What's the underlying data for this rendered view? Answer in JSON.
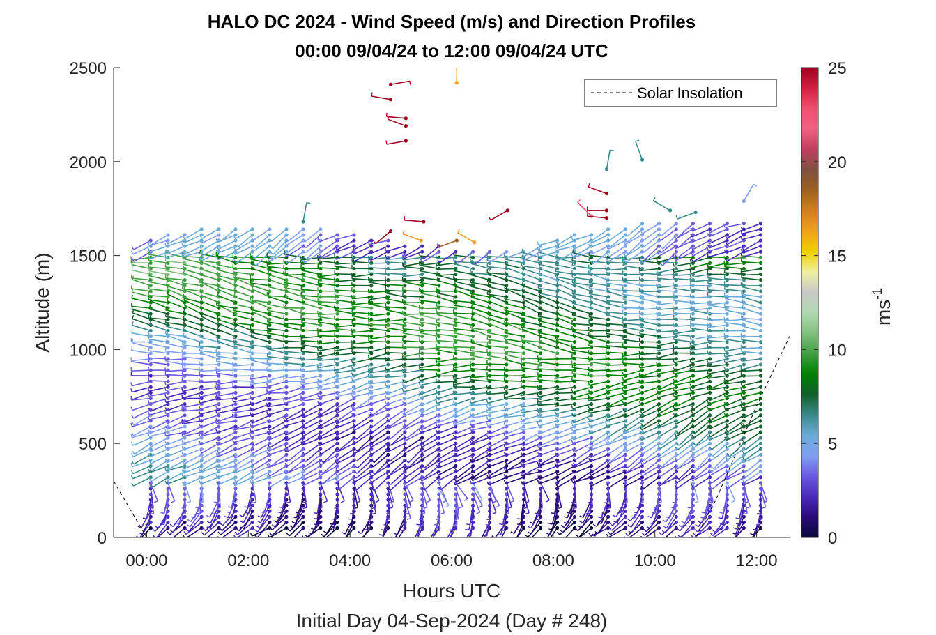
{
  "chart_data": {
    "type": "wind-barb-profile",
    "title_line1": "HALO DC 2024 - Wind Speed (m/s) and Direction Profiles",
    "title_line2": "00:00 09/04/24 to 12:00 09/04/24  UTC",
    "xlabel": "Hours UTC",
    "subtitle": "Initial Day 04-Sep-2024 (Day # 248)",
    "ylabel": "Altitude (m)",
    "x_ticks": [
      "00:00",
      "02:00",
      "04:00",
      "06:00",
      "08:00",
      "10:00",
      "12:00"
    ],
    "x_tick_hours": [
      0,
      2,
      4,
      6,
      8,
      10,
      12
    ],
    "xlim_hours": [
      -0.65,
      12.65
    ],
    "y_ticks": [
      0,
      500,
      1000,
      1500,
      2000,
      2500
    ],
    "ylim": [
      0,
      2500
    ],
    "colorbar": {
      "label": "ms",
      "label_exponent": "-1",
      "ticks": [
        0,
        5,
        10,
        15,
        20,
        25
      ],
      "range": [
        0,
        25
      ],
      "colors": [
        "#0a0a3c",
        "#2a0a7a",
        "#4a2ab8",
        "#6a5ae0",
        "#7fa0f0",
        "#6aaad8",
        "#3a8a8a",
        "#10602a",
        "#008000",
        "#40a040",
        "#80c080",
        "#b0d8b0",
        "#c8c8c8",
        "#f0f0a0",
        "#f0d000",
        "#f0a020",
        "#d08020",
        "#a06020",
        "#805040",
        "#c04060",
        "#f06080",
        "#f05070",
        "#d02040",
        "#a00020"
      ]
    },
    "legend": {
      "entries": [
        "Solar Insolation"
      ],
      "placement": "top-right"
    },
    "profile_times_hours": [
      0.08,
      0.42,
      0.75,
      1.08,
      1.42,
      1.75,
      2.08,
      2.42,
      2.75,
      3.08,
      3.42,
      3.75,
      4.08,
      4.42,
      4.75,
      5.08,
      5.42,
      5.75,
      6.08,
      6.42,
      6.75,
      7.08,
      7.42,
      7.75,
      8.08,
      8.42,
      8.75,
      9.08,
      9.42,
      9.75,
      10.08,
      10.42,
      10.75,
      11.08,
      11.42,
      11.75,
      12.08
    ],
    "sample_altitudes_m": [
      50,
      80,
      110,
      140,
      170,
      200,
      230,
      260,
      290,
      320,
      350,
      380,
      410,
      440,
      470,
      500,
      530,
      560,
      590,
      620,
      650,
      680,
      710,
      740,
      770,
      800,
      830,
      860,
      890,
      920,
      950,
      980,
      1010,
      1040,
      1070,
      1100,
      1130,
      1160,
      1190,
      1220,
      1250,
      1280,
      1310,
      1340,
      1370,
      1400,
      1430,
      1460,
      1490,
      1520,
      1550,
      1580,
      1610,
      1640,
      1670
    ],
    "solar_insolation_curve": {
      "hours": [
        -0.65,
        0.0,
        10.8,
        11.2,
        11.6,
        12.0,
        12.65
      ],
      "altitude_m": [
        300,
        0,
        0,
        200,
        450,
        700,
        1070
      ]
    },
    "scattered_barbs": [
      {
        "time_hours": 4.8,
        "altitude_m": 2410,
        "speed": 24,
        "dir_deg": 80
      },
      {
        "time_hours": 4.8,
        "altitude_m": 2330,
        "speed": 24,
        "dir_deg": 280
      },
      {
        "time_hours": 5.1,
        "altitude_m": 2230,
        "speed": 24,
        "dir_deg": 275
      },
      {
        "time_hours": 5.1,
        "altitude_m": 2190,
        "speed": 24,
        "dir_deg": 290
      },
      {
        "time_hours": 5.1,
        "altitude_m": 2110,
        "speed": 24,
        "dir_deg": 260
      },
      {
        "time_hours": 6.1,
        "altitude_m": 2420,
        "speed": 16,
        "dir_deg": 0
      },
      {
        "time_hours": 9.05,
        "altitude_m": 1960,
        "speed": 7,
        "dir_deg": 10
      },
      {
        "time_hours": 9.75,
        "altitude_m": 2010,
        "speed": 7,
        "dir_deg": 340
      },
      {
        "time_hours": 9.05,
        "altitude_m": 1830,
        "speed": 24,
        "dir_deg": 290
      },
      {
        "time_hours": 8.75,
        "altitude_m": 1710,
        "speed": 22,
        "dir_deg": 315
      },
      {
        "time_hours": 9.05,
        "altitude_m": 1740,
        "speed": 24,
        "dir_deg": 270
      },
      {
        "time_hours": 9.05,
        "altitude_m": 1700,
        "speed": 24,
        "dir_deg": 275
      },
      {
        "time_hours": 7.1,
        "altitude_m": 1740,
        "speed": 24,
        "dir_deg": 240
      },
      {
        "time_hours": 4.8,
        "altitude_m": 1630,
        "speed": 24,
        "dir_deg": 230
      },
      {
        "time_hours": 5.4,
        "altitude_m": 1580,
        "speed": 16,
        "dir_deg": 290
      },
      {
        "time_hours": 5.45,
        "altitude_m": 1680,
        "speed": 24,
        "dir_deg": 275
      },
      {
        "time_hours": 6.1,
        "altitude_m": 1580,
        "speed": 18,
        "dir_deg": 250
      },
      {
        "time_hours": 6.45,
        "altitude_m": 1570,
        "speed": 16,
        "dir_deg": 300
      },
      {
        "time_hours": 3.08,
        "altitude_m": 1680,
        "speed": 7,
        "dir_deg": 10
      },
      {
        "time_hours": 10.3,
        "altitude_m": 1740,
        "speed": 7,
        "dir_deg": 300
      },
      {
        "time_hours": 10.8,
        "altitude_m": 1730,
        "speed": 7,
        "dir_deg": 250
      },
      {
        "time_hours": 11.75,
        "altitude_m": 1790,
        "speed": 4.5,
        "dir_deg": 30
      }
    ]
  }
}
